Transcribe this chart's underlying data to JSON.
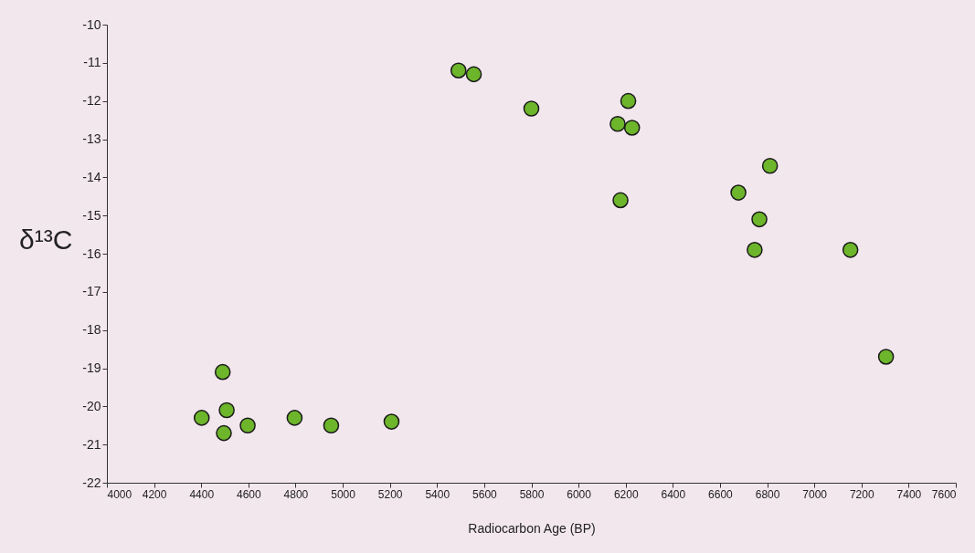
{
  "chart_data": {
    "type": "scatter",
    "xlabel": "Radiocarbon Age (BP)",
    "ylabel": "δ¹³C",
    "x": [
      4402,
      4491,
      4508,
      4496,
      4597,
      4796,
      4951,
      5207,
      5491,
      5556,
      5800,
      6166,
      6211,
      6227,
      6178,
      6678,
      6812,
      6767,
      6747,
      7153,
      7304
    ],
    "series": [
      {
        "color": "#6db52b",
        "values": [
          -20.3,
          -19.1,
          -20.1,
          -20.7,
          -20.5,
          -20.3,
          -20.5,
          -20.4,
          -11.2,
          -11.3,
          -12.2,
          -12.6,
          -12.0,
          -12.7,
          -14.6,
          -14.4,
          -13.7,
          -15.1,
          -15.9,
          -15.9,
          -18.7
        ]
      }
    ],
    "xlim": [
      4000,
      7600
    ],
    "xticks": [
      4000,
      4200,
      4400,
      4600,
      4800,
      5000,
      5200,
      5400,
      5600,
      5800,
      6000,
      6200,
      6400,
      6600,
      6800,
      7000,
      7200,
      7400,
      7600
    ],
    "ylim": [
      -22,
      -10
    ],
    "yticks": [
      -22,
      -21,
      -20,
      -19,
      -18,
      -17,
      -16,
      -15,
      -14,
      -13,
      -12,
      -11,
      -10
    ],
    "grid": false,
    "marker": "circle"
  }
}
